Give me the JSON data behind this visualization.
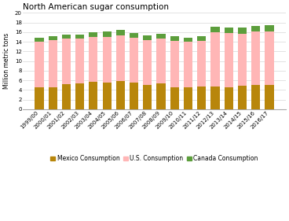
{
  "title": "North American sugar consumption",
  "ylabel": "Million metric tons",
  "ylim": [
    0,
    20
  ],
  "yticks": [
    0,
    2,
    4,
    6,
    8,
    10,
    12,
    14,
    16,
    18,
    20
  ],
  "categories": [
    "1999/00",
    "2000/01",
    "2001/02",
    "2002/03",
    "2003/04",
    "2004/05",
    "2005/06",
    "2006/07",
    "2007/08",
    "2008/09",
    "2009/10",
    "2010/11",
    "2011/12",
    "2012/13",
    "2013/14",
    "2014/15",
    "2015/16",
    "2016/17"
  ],
  "mexico": [
    4.6,
    4.6,
    5.2,
    5.3,
    5.7,
    5.5,
    5.8,
    5.5,
    5.1,
    5.4,
    4.6,
    4.5,
    4.7,
    4.7,
    4.5,
    4.9,
    5.0,
    5.1
  ],
  "us": [
    9.4,
    9.7,
    9.4,
    9.3,
    9.3,
    9.5,
    9.6,
    9.3,
    9.3,
    9.3,
    9.5,
    9.5,
    9.5,
    11.3,
    11.3,
    10.8,
    11.2,
    11.1
  ],
  "canada": [
    0.9,
    0.9,
    0.9,
    0.9,
    1.0,
    1.1,
    1.1,
    1.0,
    1.0,
    1.0,
    1.0,
    0.9,
    0.9,
    1.1,
    1.1,
    1.2,
    1.1,
    1.2
  ],
  "mexico_color": "#B8860B",
  "us_color": "#FFB6B6",
  "canada_color": "#5C9E3C",
  "background_color": "#FFFFFF",
  "plot_bg_color": "#FFFFFF",
  "title_fontsize": 7.5,
  "axis_fontsize": 5.5,
  "tick_fontsize": 5.0,
  "legend_fontsize": 5.5,
  "bar_width": 0.65
}
